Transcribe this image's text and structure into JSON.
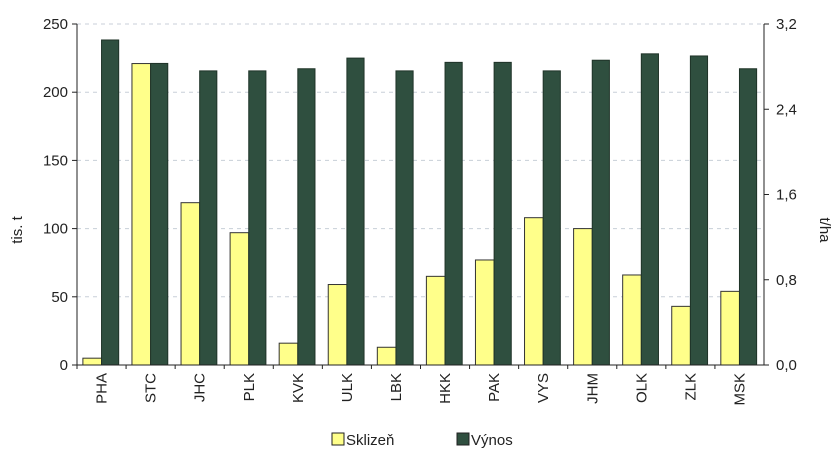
{
  "chart_data": {
    "type": "bar",
    "categories": [
      "PHA",
      "STC",
      "JHC",
      "PLK",
      "KVK",
      "ULK",
      "LBK",
      "HKK",
      "PAK",
      "VYS",
      "JHM",
      "OLK",
      "ZLK",
      "MSK"
    ],
    "series": [
      {
        "name": "Sklizeň",
        "axis": "left",
        "color": "#ffff8a",
        "values": [
          5,
          221,
          119,
          97,
          16,
          59,
          13,
          65,
          77,
          108,
          100,
          66,
          43,
          54
        ]
      },
      {
        "name": "Výnos",
        "axis": "right",
        "color": "#2f4f3f",
        "values": [
          3.05,
          2.83,
          2.76,
          2.76,
          2.78,
          2.88,
          2.76,
          2.84,
          2.84,
          2.76,
          2.86,
          2.92,
          2.9,
          2.78
        ]
      }
    ],
    "ylabel": "tis. t",
    "ylim": [
      0,
      250
    ],
    "yticks": [
      0,
      50,
      100,
      150,
      200,
      250
    ],
    "y2label": "t/ha",
    "y2lim": [
      0,
      3.2
    ],
    "y2ticks": [
      "0,0",
      "0,8",
      "1,6",
      "2,4",
      "3,2"
    ],
    "grid": "horizontal-dashed",
    "legend_position": "bottom"
  }
}
